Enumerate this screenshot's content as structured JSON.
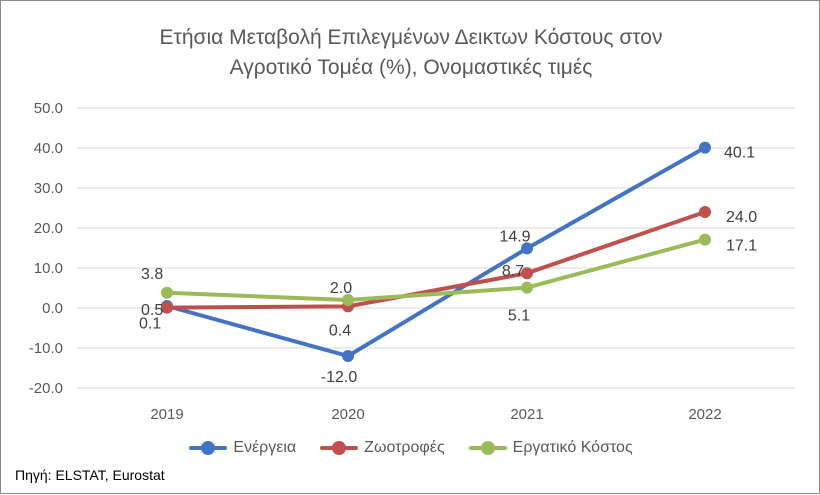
{
  "chart_data": {
    "type": "line",
    "title_line1": "Ετήσια Μεταβολή Επιλεγμένων Δεικτων Κόστους στον",
    "title_line2": "Αγροτικό Τομέα (%), Ονομαστικές τιμές",
    "xlabel": "",
    "ylabel": "",
    "categories": [
      "2019",
      "2020",
      "2021",
      "2022"
    ],
    "ylim": [
      -20,
      50
    ],
    "yticks": [
      "50.0",
      "40.0",
      "30.0",
      "20.0",
      "10.0",
      "0.0",
      "-10.0",
      "-20.0"
    ],
    "grid": true,
    "legend_position": "bottom",
    "series": [
      {
        "name": "Ενέργεια",
        "color": "#4472C4",
        "values": [
          0.5,
          -12.0,
          14.9,
          40.1
        ],
        "labels": [
          "0.5",
          "-12.0",
          "14.9",
          "40.1"
        ]
      },
      {
        "name": "Ζωοτροφές",
        "color": "#C0504D",
        "values": [
          0.1,
          0.4,
          8.7,
          24.0
        ],
        "labels": [
          "0.1",
          "0.4",
          "8.7",
          "24.0"
        ]
      },
      {
        "name": "Εργατικό Κόστος",
        "color": "#9BBB59",
        "values": [
          3.8,
          2.0,
          5.1,
          17.1
        ],
        "labels": [
          "3.8",
          "2.0",
          "5.1",
          "17.1"
        ]
      }
    ],
    "source": "Πηγή: ELSTAT, Eurostat"
  }
}
